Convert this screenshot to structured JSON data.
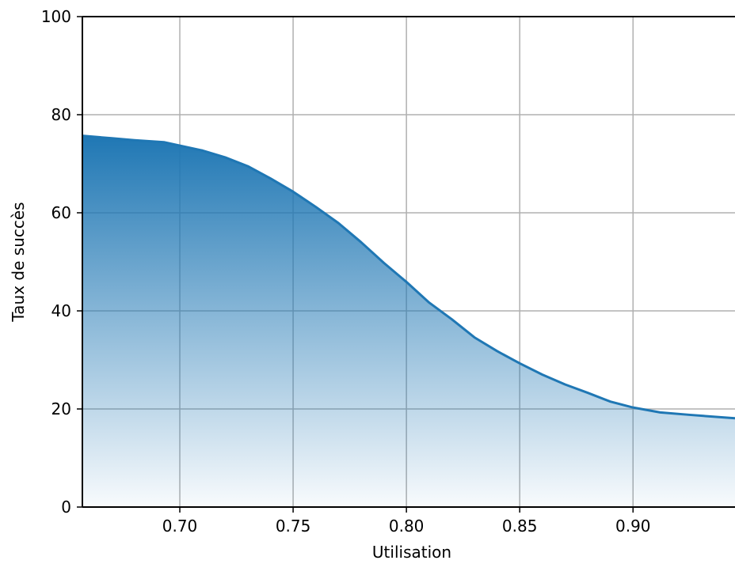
{
  "chart_data": {
    "type": "area",
    "title": "",
    "xlabel": "Utilisation",
    "ylabel": "Taux de succès",
    "xlim": [
      0.657,
      0.945
    ],
    "ylim": [
      0,
      100
    ],
    "grid": true,
    "legend": "none",
    "colors": {
      "line": "#1f77b4",
      "fill_top": "#1f77b4",
      "fill_bottom": "#ffffff",
      "grid": "#b0b0b0"
    },
    "x_ticks": [
      "0.70",
      "0.75",
      "0.80",
      "0.85",
      "0.90"
    ],
    "y_ticks": [
      "0",
      "20",
      "40",
      "60",
      "80",
      "100"
    ],
    "series": [
      {
        "x": [
          0.657,
          0.67,
          0.68,
          0.693,
          0.7,
          0.71,
          0.72,
          0.73,
          0.74,
          0.75,
          0.76,
          0.77,
          0.78,
          0.79,
          0.8,
          0.81,
          0.82,
          0.83,
          0.84,
          0.85,
          0.86,
          0.87,
          0.88,
          0.89,
          0.9,
          0.912,
          0.925,
          0.945
        ],
        "y": [
          75.7,
          75.2,
          74.8,
          74.4,
          73.7,
          72.7,
          71.3,
          69.5,
          67.0,
          64.3,
          61.2,
          57.9,
          54.0,
          49.8,
          45.9,
          41.7,
          38.3,
          34.6,
          31.8,
          29.3,
          27.0,
          25.0,
          23.3,
          21.5,
          20.3,
          19.3,
          18.8,
          18.1
        ]
      }
    ]
  }
}
